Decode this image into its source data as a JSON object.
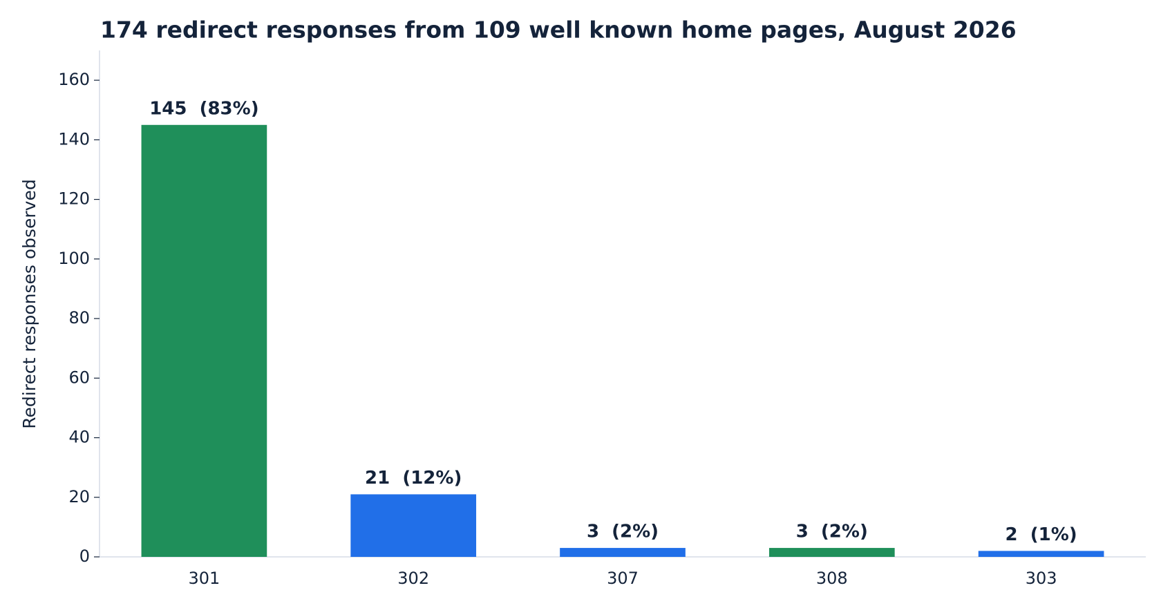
{
  "chart_data": {
    "type": "bar",
    "title": "174 redirect responses from 109 well known home pages, August 2026",
    "y_label": "Redirect responses observed",
    "categories": [
      "301",
      "302",
      "307",
      "308",
      "303"
    ],
    "values": [
      145,
      21,
      3,
      3,
      2
    ],
    "value_labels": [
      "145  (83%)",
      "21  (12%)",
      "3  (2%)",
      "3  (2%)",
      "2  (1%)"
    ],
    "colors": [
      "#1f8f5a",
      "#216fe8",
      "#216fe8",
      "#1f8f5a",
      "#216fe8"
    ],
    "ylim": [
      0,
      170
    ],
    "yticks": [
      0,
      20,
      40,
      60,
      80,
      100,
      120,
      140,
      160
    ],
    "grid": false
  }
}
